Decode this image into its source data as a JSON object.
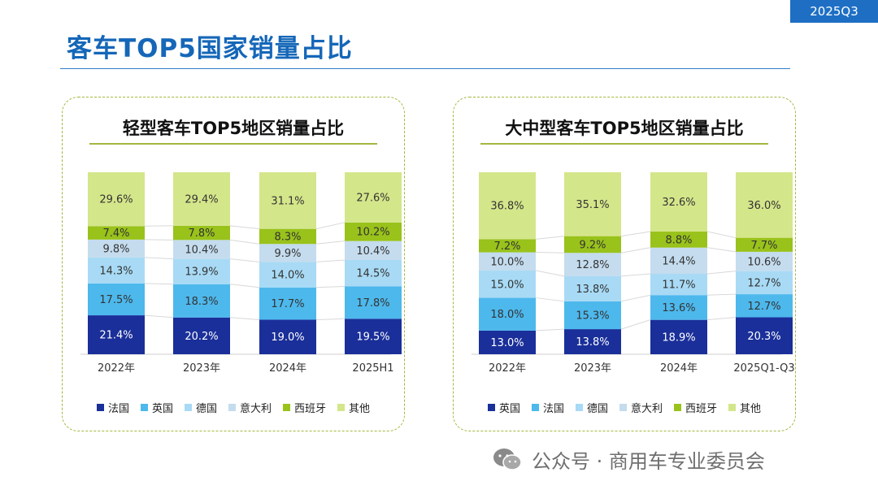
{
  "header": {
    "badge": "2025Q3",
    "title": "客车TOP5国家销量占比"
  },
  "footer": {
    "source": "公众号 · 商用车专业委员会"
  },
  "chart_data": [
    {
      "type": "bar",
      "stacked": true,
      "title": "轻型客车TOP5地区销量占比",
      "categories": [
        "2022年",
        "2023年",
        "2024年",
        "2025H1"
      ],
      "series": [
        {
          "name": "法国",
          "color": "#1a2f99",
          "values": [
            21.4,
            20.2,
            19.0,
            19.5
          ]
        },
        {
          "name": "英国",
          "color": "#4db8ec",
          "values": [
            17.5,
            18.3,
            17.7,
            17.8
          ]
        },
        {
          "name": "德国",
          "color": "#a8daf5",
          "values": [
            14.3,
            13.9,
            14.0,
            14.5
          ]
        },
        {
          "name": "意大利",
          "color": "#c4dcee",
          "values": [
            9.8,
            10.4,
            9.9,
            10.4
          ]
        },
        {
          "name": "西班牙",
          "color": "#99c21b",
          "values": [
            7.4,
            7.8,
            8.3,
            10.2
          ]
        },
        {
          "name": "其他",
          "color": "#d4e68a",
          "values": [
            29.6,
            29.4,
            31.1,
            27.6
          ]
        }
      ],
      "value_suffix": "%"
    },
    {
      "type": "bar",
      "stacked": true,
      "title": "大中型客车TOP5地区销量占比",
      "categories": [
        "2022年",
        "2023年",
        "2024年",
        "2025Q1-Q3"
      ],
      "series": [
        {
          "name": "英国",
          "color": "#1a2f99",
          "values": [
            13.0,
            13.8,
            18.9,
            20.3
          ]
        },
        {
          "name": "法国",
          "color": "#4db8ec",
          "values": [
            18.0,
            15.3,
            13.6,
            12.7
          ]
        },
        {
          "name": "德国",
          "color": "#a8daf5",
          "values": [
            15.0,
            13.8,
            11.7,
            12.7
          ]
        },
        {
          "name": "意大利",
          "color": "#c4dcee",
          "values": [
            10.0,
            12.8,
            14.4,
            10.6
          ]
        },
        {
          "name": "西班牙",
          "color": "#99c21b",
          "values": [
            7.2,
            9.2,
            8.8,
            7.7
          ]
        },
        {
          "name": "其他",
          "color": "#d4e68a",
          "values": [
            36.8,
            35.1,
            32.6,
            36.0
          ]
        }
      ],
      "value_suffix": "%"
    }
  ]
}
